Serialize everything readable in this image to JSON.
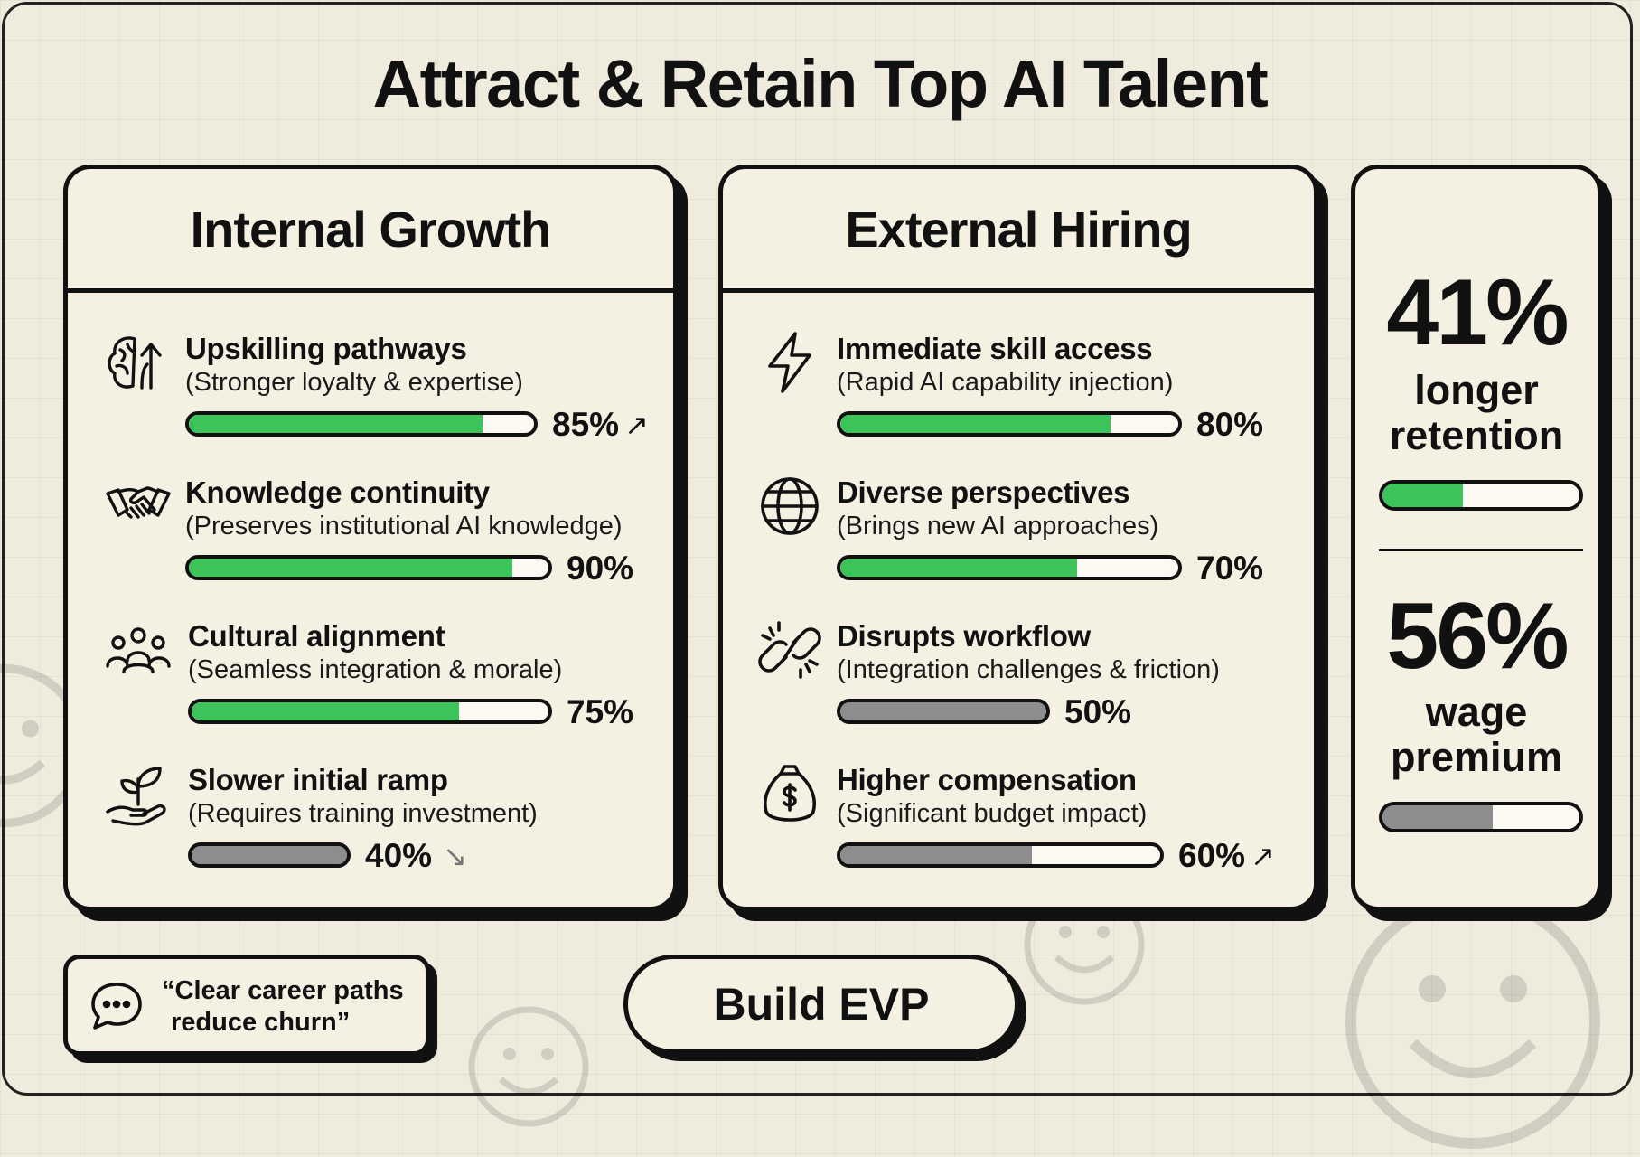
{
  "title": "Attract & Retain Top AI Talent",
  "colors": {
    "green": "#3cc35a",
    "gray": "#8d8d8d",
    "ink": "#111111",
    "paper": "#f4f0e2",
    "background": "#efebdd"
  },
  "internal": {
    "heading": "Internal Growth",
    "items": [
      {
        "icon": "brain-arrow-icon",
        "title": "Upskilling pathways",
        "subtitle": "(Stronger loyalty & expertise)",
        "value": 85,
        "label": "85%",
        "color": "green",
        "trend": "↗"
      },
      {
        "icon": "handshake-icon",
        "title": "Knowledge continuity",
        "subtitle": "(Preserves institutional AI knowledge)",
        "value": 90,
        "label": "90%",
        "color": "green",
        "trend": ""
      },
      {
        "icon": "team-icon",
        "title": "Cultural alignment",
        "subtitle": "(Seamless integration & morale)",
        "value": 75,
        "label": "75%",
        "color": "green",
        "trend": ""
      },
      {
        "icon": "sprout-hand-icon",
        "title": "Slower initial ramp",
        "subtitle": "(Requires training investment)",
        "value": 40,
        "label": "40%",
        "color": "gray",
        "trend": "↘"
      }
    ]
  },
  "external": {
    "heading": "External Hiring",
    "items": [
      {
        "icon": "lightning-icon",
        "title": "Immediate skill access",
        "subtitle": "(Rapid AI capability injection)",
        "value": 80,
        "label": "80%",
        "color": "green",
        "trend": ""
      },
      {
        "icon": "globe-icon",
        "title": "Diverse perspectives",
        "subtitle": "(Brings new AI approaches)",
        "value": 70,
        "label": "70%",
        "color": "green",
        "trend": ""
      },
      {
        "icon": "broken-link-icon",
        "title": "Disrupts workflow",
        "subtitle": "(Integration challenges & friction)",
        "value": 50,
        "label": "50%",
        "color": "gray",
        "trend": ""
      },
      {
        "icon": "money-bag-icon",
        "title": "Higher compensation",
        "subtitle": "(Significant budget impact)",
        "value": 60,
        "label": "60%",
        "color": "gray",
        "trend": "↗"
      }
    ]
  },
  "stats": [
    {
      "number": "41%",
      "label_line1": "longer",
      "label_line2": "retention",
      "value": 41,
      "color": "green"
    },
    {
      "number": "56%",
      "label_line1": "wage",
      "label_line2": "premium",
      "value": 56,
      "color": "gray"
    }
  ],
  "quote": {
    "line1": "“Clear career paths",
    "line2": "reduce churn”"
  },
  "button_label": "Build EVP"
}
